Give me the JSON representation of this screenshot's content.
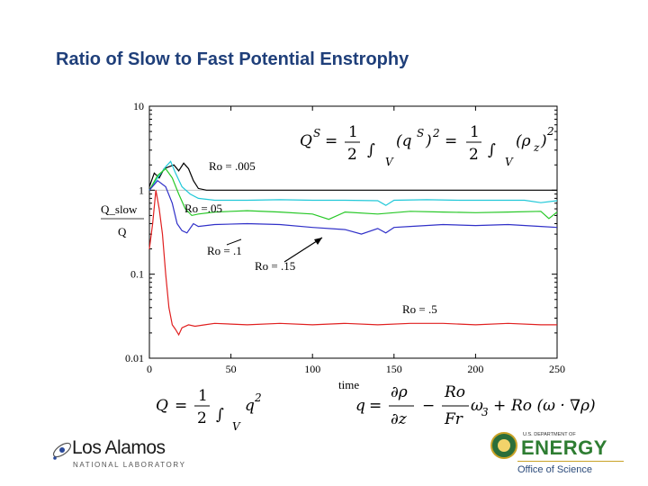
{
  "slide": {
    "title": "Ratio of Slow to Fast Potential Enstrophy"
  },
  "chart_data": {
    "type": "line",
    "title": "",
    "xlabel": "time",
    "ylabel_top": "Q_slow",
    "ylabel_bottom": "Q",
    "xlim": [
      0,
      250
    ],
    "ylim": [
      0.01,
      10
    ],
    "yscale": "log",
    "xticks": [
      0,
      50,
      100,
      150,
      200,
      250
    ],
    "xtick_labels": [
      "0",
      "50",
      "100",
      "150",
      "200",
      "250"
    ],
    "yticks": [
      0.01,
      0.1,
      1,
      10
    ],
    "ytick_labels": [
      "0.01",
      "0.1",
      "1",
      "10"
    ],
    "series": [
      {
        "name": "Ro = .005",
        "color": "#000000",
        "x": [
          0,
          3,
          6,
          9,
          12,
          15,
          18,
          21,
          24,
          27,
          30,
          35,
          40,
          60,
          80,
          100,
          120,
          140,
          160,
          180,
          200,
          220,
          240,
          250
        ],
        "y": [
          1.1,
          1.6,
          1.4,
          1.8,
          1.9,
          2.0,
          1.7,
          2.1,
          1.8,
          1.3,
          1.05,
          1.0,
          1.0,
          1.0,
          1.0,
          1.0,
          1.0,
          1.0,
          1.0,
          1.0,
          1.0,
          1.0,
          1.0,
          1.0
        ]
      },
      {
        "name": "Ro =.05",
        "color": "#20c8d8",
        "x": [
          0,
          5,
          10,
          13,
          16,
          20,
          25,
          30,
          40,
          60,
          80,
          100,
          120,
          140,
          145,
          150,
          170,
          190,
          210,
          230,
          240,
          250
        ],
        "y": [
          1.0,
          1.4,
          1.9,
          2.2,
          1.6,
          1.1,
          0.9,
          0.8,
          0.76,
          0.76,
          0.77,
          0.76,
          0.76,
          0.75,
          0.66,
          0.76,
          0.77,
          0.76,
          0.76,
          0.76,
          0.71,
          0.75
        ]
      },
      {
        "name": "Ro = .1",
        "color": "#28c828",
        "x": [
          0,
          5,
          10,
          14,
          18,
          22,
          26,
          30,
          40,
          60,
          80,
          100,
          110,
          120,
          140,
          160,
          180,
          200,
          220,
          240,
          245,
          250
        ],
        "y": [
          1.0,
          1.5,
          1.8,
          1.4,
          0.9,
          0.6,
          0.5,
          0.52,
          0.55,
          0.57,
          0.55,
          0.52,
          0.45,
          0.55,
          0.52,
          0.56,
          0.55,
          0.54,
          0.55,
          0.56,
          0.46,
          0.55
        ]
      },
      {
        "name": "Ro = .15",
        "color": "#3030c8",
        "x": [
          0,
          5,
          10,
          14,
          17,
          20,
          23,
          27,
          30,
          40,
          60,
          80,
          100,
          120,
          130,
          140,
          145,
          150,
          160,
          180,
          200,
          220,
          240,
          250
        ],
        "y": [
          1.0,
          1.3,
          1.1,
          0.7,
          0.4,
          0.33,
          0.31,
          0.4,
          0.37,
          0.39,
          0.4,
          0.39,
          0.36,
          0.34,
          0.3,
          0.35,
          0.31,
          0.36,
          0.37,
          0.39,
          0.38,
          0.39,
          0.37,
          0.36
        ]
      },
      {
        "name": "Ro = .5",
        "color": "#e02020",
        "x": [
          0,
          2,
          4,
          6,
          8,
          10,
          12,
          14,
          16,
          18,
          20,
          24,
          28,
          34,
          40,
          60,
          80,
          100,
          120,
          140,
          160,
          180,
          200,
          220,
          240,
          250
        ],
        "y": [
          0.2,
          0.4,
          1.0,
          0.6,
          0.3,
          0.1,
          0.04,
          0.025,
          0.022,
          0.019,
          0.023,
          0.025,
          0.024,
          0.025,
          0.026,
          0.025,
          0.026,
          0.025,
          0.026,
          0.025,
          0.026,
          0.026,
          0.025,
          0.026,
          0.025,
          0.025
        ]
      }
    ],
    "annotations": [
      {
        "text": "Ro = .005"
      },
      {
        "text": "Ro =.05"
      },
      {
        "text": "Ro = .1"
      },
      {
        "text": "Ro = .15"
      },
      {
        "text": "Ro = .5"
      }
    ]
  },
  "equations": {
    "eq_qs": {
      "lhs": "Q",
      "lhs_sup": "S",
      "equals": "=",
      "half_num": "1",
      "half_den": "2",
      "integral": "∫",
      "domain": "V",
      "term1": "(q",
      "term1_sup": "S",
      "term1_end": ")",
      "term1_pow": "2",
      "equals2": "=",
      "term2": "(ρ",
      "term2_sub": "z",
      "term2_end": ")",
      "term2_pow": "2"
    },
    "eq_q": {
      "lhs": "Q",
      "equals": "=",
      "half_num": "1",
      "half_den": "2",
      "integral": "∫",
      "domain": "V",
      "term": "q",
      "term_pow": "2"
    },
    "eq_small_q": {
      "lhs": "q",
      "equals": "=",
      "dnum": "∂ρ",
      "dden": "∂z",
      "minus": "−",
      "rnum": "Ro",
      "rden": "Fr",
      "omega": "ω",
      "omega_sub": "3",
      "plus": "+",
      "tail": "Ro (ω · ∇ρ)"
    }
  },
  "logos": {
    "los_alamos": {
      "name": "Los Alamos",
      "subtitle": "NATIONAL LABORATORY"
    },
    "doe": {
      "top": "U.S. DEPARTMENT OF",
      "name": "ENERGY",
      "office": "Office of Science"
    }
  }
}
